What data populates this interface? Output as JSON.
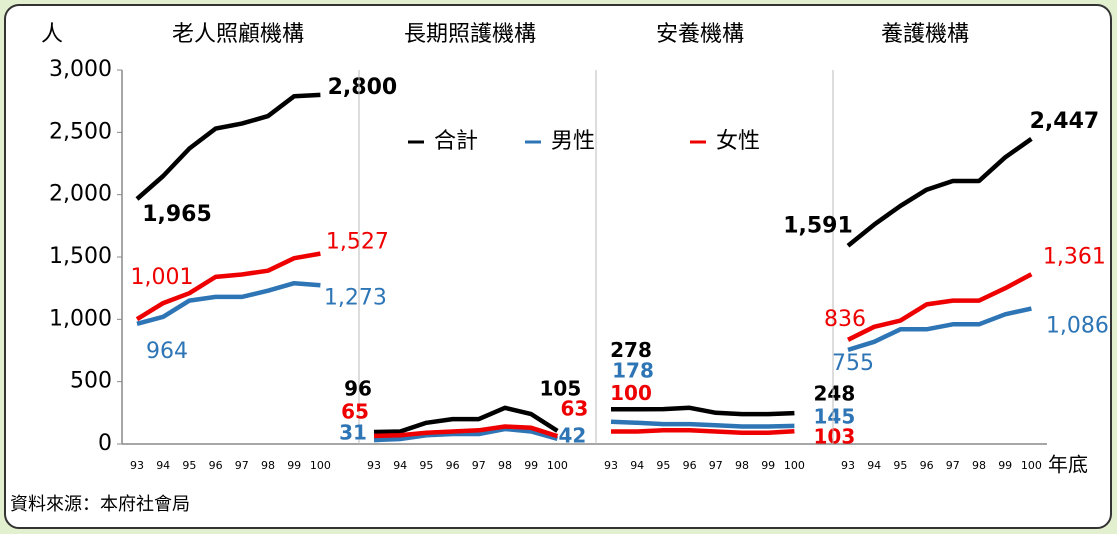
{
  "chart_data": {
    "type": "line",
    "y_label": "人",
    "x_label": "年底",
    "source": "資料來源：本府社會局",
    "categories": [
      "93",
      "94",
      "95",
      "96",
      "97",
      "98",
      "99",
      "100"
    ],
    "ylim": [
      0,
      3000
    ],
    "yticks": [
      0,
      500,
      {
        "value": 1000,
        "label": "1,000"
      },
      {
        "value": 1500,
        "label": "1,500"
      },
      {
        "value": 2000,
        "label": "2,000"
      },
      {
        "value": 2500,
        "label": "2,500"
      },
      {
        "value": 3000,
        "label": "3,000"
      }
    ],
    "panels": [
      {
        "title": "老人照顧機構",
        "series": [
          {
            "name": "合計",
            "color": "#000000",
            "values": [
              1965,
              2150,
              2370,
              2530,
              2570,
              2630,
              2790,
              2800
            ],
            "value_labels": [
              "1,965",
              null,
              null,
              null,
              null,
              null,
              null,
              "2,800"
            ]
          },
          {
            "name": "男性",
            "color": "#2e75b6",
            "values": [
              964,
              1020,
              1150,
              1180,
              1180,
              1230,
              1290,
              1273
            ],
            "value_labels": [
              "964",
              null,
              null,
              null,
              null,
              null,
              null,
              "1,273"
            ]
          },
          {
            "name": "女性",
            "color": "#ee0000",
            "values": [
              1001,
              1130,
              1210,
              1340,
              1360,
              1390,
              1490,
              1527
            ],
            "value_labels": [
              "1,001",
              null,
              null,
              null,
              null,
              null,
              null,
              "1,527"
            ]
          }
        ]
      },
      {
        "title": "長期照護機構",
        "series": [
          {
            "name": "合計",
            "color": "#000000",
            "values": [
              96,
              100,
              170,
              200,
              200,
              290,
              240,
              105
            ],
            "value_labels": [
              "96",
              null,
              null,
              null,
              null,
              null,
              null,
              "105"
            ]
          },
          {
            "name": "男性",
            "color": "#2e75b6",
            "values": [
              31,
              40,
              70,
              80,
              80,
              120,
              100,
              42
            ],
            "value_labels": [
              "31",
              null,
              null,
              null,
              null,
              null,
              null,
              "42"
            ]
          },
          {
            "name": "女性",
            "color": "#ee0000",
            "values": [
              65,
              70,
              90,
              100,
              110,
              140,
              130,
              63
            ],
            "value_labels": [
              "65",
              null,
              null,
              null,
              null,
              null,
              null,
              "63"
            ]
          }
        ]
      },
      {
        "title": "安養機構",
        "series": [
          {
            "name": "合計",
            "color": "#000000",
            "values": [
              278,
              278,
              280,
              290,
              250,
              240,
              240,
              248
            ],
            "value_labels": [
              "278",
              null,
              null,
              null,
              null,
              null,
              null,
              "248"
            ]
          },
          {
            "name": "男性",
            "color": "#2e75b6",
            "values": [
              178,
              170,
              160,
              160,
              150,
              140,
              140,
              145
            ],
            "value_labels": [
              "178",
              null,
              null,
              null,
              null,
              null,
              null,
              "145"
            ]
          },
          {
            "name": "女性",
            "color": "#ee0000",
            "values": [
              100,
              100,
              110,
              110,
              100,
              90,
              90,
              103
            ],
            "value_labels": [
              "100",
              null,
              null,
              null,
              null,
              null,
              null,
              "103"
            ]
          }
        ]
      },
      {
        "title": "養護機構",
        "series": [
          {
            "name": "合計",
            "color": "#000000",
            "values": [
              1591,
              1760,
              1910,
              2040,
              2110,
              2110,
              2300,
              2447
            ],
            "value_labels": [
              "1,591",
              null,
              null,
              null,
              null,
              null,
              null,
              "2,447"
            ]
          },
          {
            "name": "男性",
            "color": "#2e75b6",
            "values": [
              755,
              820,
              920,
              920,
              960,
              960,
              1040,
              1086
            ],
            "value_labels": [
              "755",
              null,
              null,
              null,
              null,
              null,
              null,
              "1,086"
            ]
          },
          {
            "name": "女性",
            "color": "#ee0000",
            "values": [
              836,
              940,
              990,
              1120,
              1150,
              1150,
              1250,
              1361
            ],
            "value_labels": [
              "836",
              null,
              null,
              null,
              null,
              null,
              null,
              "1,361"
            ]
          }
        ]
      }
    ]
  }
}
